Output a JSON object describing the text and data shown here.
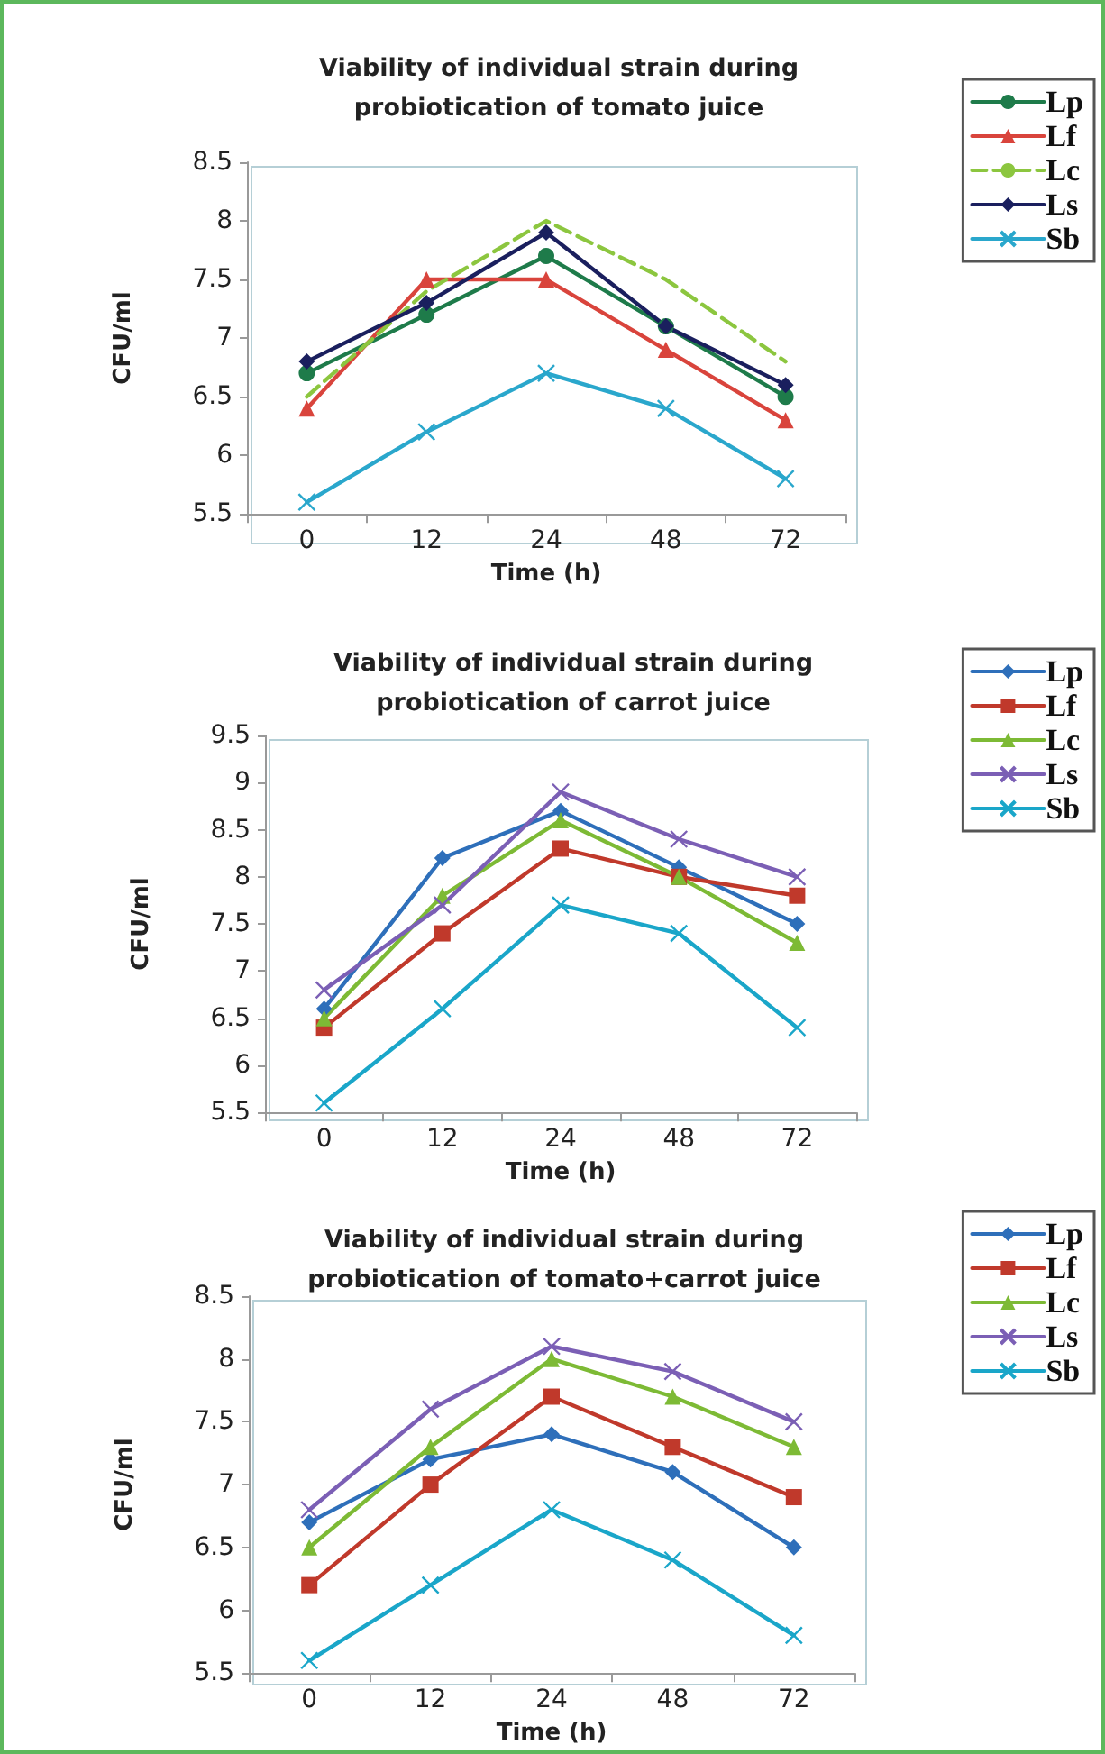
{
  "chart_data": [
    {
      "type": "line",
      "title": "Viability of individual strain during\nprobiotication of tomato juice",
      "xlabel": "Time (h)",
      "ylabel": "CFU/ml",
      "categories": [
        "0",
        "12",
        "24",
        "48",
        "72"
      ],
      "ylim": [
        5.5,
        8.5
      ],
      "yticks": [
        5.5,
        6,
        6.5,
        7,
        7.5,
        8,
        8.5
      ],
      "grid": false,
      "legend": "top right",
      "series": [
        {
          "name": "Lp",
          "color": "#1e7b4a",
          "marker": "circle",
          "line_style": "solid",
          "values": [
            6.7,
            7.2,
            7.7,
            7.1,
            6.5
          ]
        },
        {
          "name": "Lf",
          "color": "#d9443c",
          "marker": "triangle",
          "line_style": "solid",
          "values": [
            6.4,
            7.5,
            7.5,
            6.9,
            6.3
          ]
        },
        {
          "name": "Lc",
          "color": "#8cc63f",
          "marker": "none",
          "line_style": "dashed",
          "values": [
            6.5,
            7.4,
            8.0,
            7.5,
            6.8
          ]
        },
        {
          "name": "Ls",
          "color": "#1a1f5e",
          "marker": "diamond",
          "line_style": "solid",
          "values": [
            6.8,
            7.3,
            7.9,
            7.1,
            6.6
          ]
        },
        {
          "name": "Sb",
          "color": "#2aa7cc",
          "marker": "cross",
          "line_style": "solid",
          "values": [
            5.6,
            6.2,
            6.7,
            6.4,
            5.8
          ]
        }
      ]
    },
    {
      "type": "line",
      "title": "Viability of individual strain during\nprobiotication of carrot juice",
      "xlabel": "Time (h)",
      "ylabel": "CFU/ml",
      "categories": [
        "0",
        "12",
        "24",
        "48",
        "72"
      ],
      "ylim": [
        5.5,
        9.5
      ],
      "yticks": [
        5.5,
        6,
        6.5,
        7,
        7.5,
        8,
        8.5,
        9,
        9.5
      ],
      "grid": false,
      "legend": "top right",
      "series": [
        {
          "name": "Lp",
          "color": "#2e6fba",
          "marker": "diamond",
          "line_style": "solid",
          "values": [
            6.6,
            8.2,
            8.7,
            8.1,
            7.5
          ]
        },
        {
          "name": "Lf",
          "color": "#c0392b",
          "marker": "square",
          "line_style": "solid",
          "values": [
            6.4,
            7.4,
            8.3,
            8.0,
            7.8
          ]
        },
        {
          "name": "Lc",
          "color": "#7dba35",
          "marker": "triangle",
          "line_style": "solid",
          "values": [
            6.5,
            7.8,
            8.6,
            8.0,
            7.3
          ]
        },
        {
          "name": "Ls",
          "color": "#7b5fb5",
          "marker": "cross",
          "line_style": "solid",
          "values": [
            6.8,
            7.7,
            8.9,
            8.4,
            8.0
          ]
        },
        {
          "name": "Sb",
          "color": "#1aa6c9",
          "marker": "cross",
          "line_style": "solid",
          "values": [
            5.6,
            6.6,
            7.7,
            7.4,
            6.4
          ]
        }
      ]
    },
    {
      "type": "line",
      "title": "Viability of individual strain during\nprobiotication of tomato+carrot juice",
      "xlabel": "Time (h)",
      "ylabel": "CFU/ml",
      "categories": [
        "0",
        "12",
        "24",
        "48",
        "72"
      ],
      "ylim": [
        5.5,
        8.5
      ],
      "yticks": [
        5.5,
        6,
        6.5,
        7,
        7.5,
        8,
        8.5
      ],
      "grid": false,
      "legend": "top right",
      "series": [
        {
          "name": "Lp",
          "color": "#2e6fba",
          "marker": "diamond",
          "line_style": "solid",
          "values": [
            6.7,
            7.2,
            7.4,
            7.1,
            6.5
          ]
        },
        {
          "name": "Lf",
          "color": "#c0392b",
          "marker": "square",
          "line_style": "solid",
          "values": [
            6.2,
            7.0,
            7.7,
            7.3,
            6.9
          ]
        },
        {
          "name": "Lc",
          "color": "#7dba35",
          "marker": "triangle",
          "line_style": "solid",
          "values": [
            6.5,
            7.3,
            8.0,
            7.7,
            7.3
          ]
        },
        {
          "name": "Ls",
          "color": "#7b5fb5",
          "marker": "cross",
          "line_style": "solid",
          "values": [
            6.8,
            7.6,
            8.1,
            7.9,
            7.5
          ]
        },
        {
          "name": "Sb",
          "color": "#1aa6c9",
          "marker": "cross",
          "line_style": "solid",
          "values": [
            5.6,
            6.2,
            6.8,
            6.4,
            5.8
          ]
        }
      ]
    }
  ]
}
